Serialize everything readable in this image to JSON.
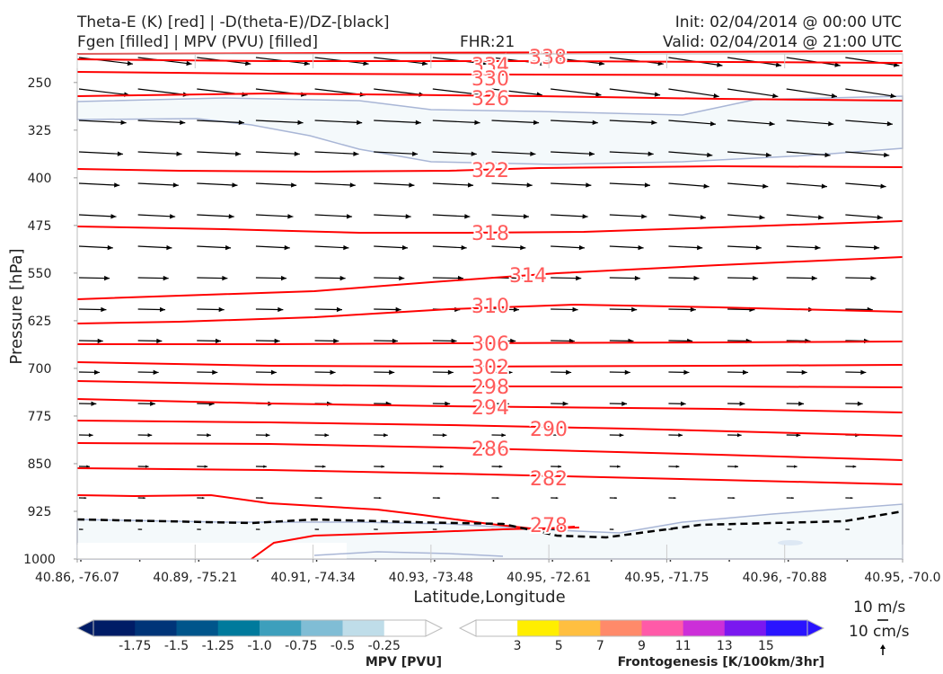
{
  "header": {
    "title_line1": "Theta-E (K) [red] | -D(theta-E)/DZ-[black]",
    "title_line2": "Fgen [filled] | MPV (PVU) [filled]",
    "fhr": "FHR:21",
    "init": "Init: 02/04/2014 @ 00:00 UTC",
    "valid": "Valid: 02/04/2014 @ 21:00 UTC"
  },
  "chart_data": {
    "type": "cross-section",
    "xlabel": "Latitude,Longitude",
    "ylabel": "Pressure [hPa]",
    "y_axis": {
      "ticks": [
        250,
        325,
        400,
        475,
        550,
        625,
        700,
        775,
        850,
        925,
        1000
      ],
      "range": [
        205,
        1000
      ],
      "inverted": true
    },
    "x_axis": {
      "ticks": [
        "40.86, -76.07",
        "40.89, -75.21",
        "40.91, -74.34",
        "40.93, -73.48",
        "40.95, -72.61",
        "40.95, -71.75",
        "40.96, -70.88",
        "40.95, -70.0"
      ]
    },
    "theta_e_contours": {
      "color": "#ff0000",
      "label_color": "#ff5a5a",
      "labels": [
        "338",
        "334",
        "330",
        "326",
        "322",
        "318",
        "314",
        "310",
        "306",
        "302",
        "298",
        "294",
        "290",
        "286",
        "282",
        "278"
      ]
    },
    "mpv_colorbar": {
      "label": "MPV [PVU]",
      "tick_labels": [
        "-1.75",
        "-1.5",
        "-1.25",
        "-1.0",
        "-0.75",
        "-0.5",
        "-0.25"
      ],
      "colors": [
        "#001c66",
        "#003478",
        "#00558b",
        "#007a9c",
        "#3d9fbc",
        "#80bdd5",
        "#bfdde9",
        "#ffffff"
      ]
    },
    "fgen_colorbar": {
      "label": "Frontogenesis [K/100km/3hr]",
      "tick_labels": [
        "3",
        "5",
        "7",
        "9",
        "11",
        "13",
        "15"
      ],
      "colors": [
        "#ffffff",
        "#ffee00",
        "#ffbf40",
        "#ff8a6a",
        "#ff5aa8",
        "#cc2fd8",
        "#7a18f0",
        "#2a14ff"
      ]
    },
    "wind_key": {
      "horizontal": "10 m/s",
      "vertical": "10 cm/s"
    },
    "grid": false
  }
}
